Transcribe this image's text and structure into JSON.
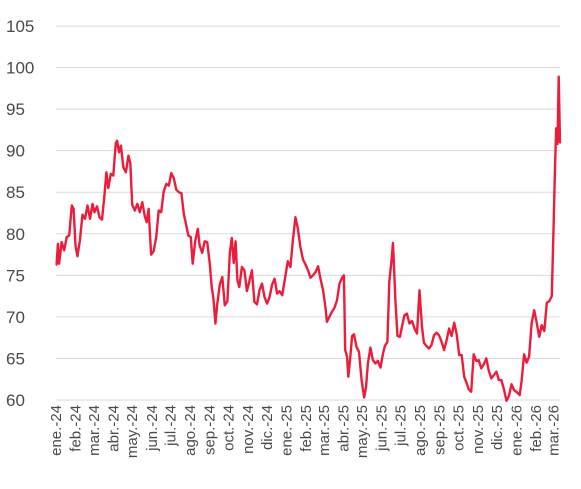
{
  "chart_data": {
    "type": "line",
    "title": "",
    "xlabel": "",
    "ylabel": "",
    "ylim": [
      60,
      105
    ],
    "yticks": [
      60,
      65,
      70,
      75,
      80,
      85,
      90,
      95,
      100,
      105
    ],
    "grid": true,
    "legend": "none",
    "color": "#ec1c3b",
    "xtick_labels": [
      "ene.-24",
      "feb.-24",
      "mar.-24",
      "abr.-24",
      "may.-24",
      "jun.-24",
      "jul.-24",
      "ago.-24",
      "sep.-24",
      "oct.-24",
      "nov.-24",
      "dic.-24",
      "ene.-25",
      "feb.-25",
      "mar.-25",
      "abr.-25",
      "may.-25",
      "jun.-25",
      "jul.-25",
      "ago.-25",
      "sep.-25",
      "oct.-25",
      "nov.-25",
      "dic.-25",
      "ene.-26",
      "feb.-26",
      "mar.-26"
    ],
    "series": [
      {
        "points": [
          [
            "2024-01-02",
            76.3
          ],
          [
            "2024-01-04",
            78.8
          ],
          [
            "2024-01-06",
            76.4
          ],
          [
            "2024-01-10",
            79.0
          ],
          [
            "2024-01-14",
            78.0
          ],
          [
            "2024-01-18",
            79.6
          ],
          [
            "2024-01-22",
            79.8
          ],
          [
            "2024-01-26",
            83.4
          ],
          [
            "2024-01-29",
            83.0
          ],
          [
            "2024-02-01",
            78.6
          ],
          [
            "2024-02-04",
            77.3
          ],
          [
            "2024-02-08",
            79.2
          ],
          [
            "2024-02-12",
            82.3
          ],
          [
            "2024-02-16",
            81.8
          ],
          [
            "2024-02-20",
            83.4
          ],
          [
            "2024-02-24",
            81.8
          ],
          [
            "2024-02-28",
            83.6
          ],
          [
            "2024-03-02",
            82.6
          ],
          [
            "2024-03-06",
            83.3
          ],
          [
            "2024-03-10",
            82.0
          ],
          [
            "2024-03-14",
            81.7
          ],
          [
            "2024-03-18",
            84.7
          ],
          [
            "2024-03-21",
            87.4
          ],
          [
            "2024-03-24",
            85.5
          ],
          [
            "2024-03-28",
            87.2
          ],
          [
            "2024-04-01",
            87.0
          ],
          [
            "2024-04-05",
            90.9
          ],
          [
            "2024-04-07",
            91.2
          ],
          [
            "2024-04-10",
            89.8
          ],
          [
            "2024-04-13",
            90.6
          ],
          [
            "2024-04-17",
            88.0
          ],
          [
            "2024-04-21",
            87.4
          ],
          [
            "2024-04-25",
            89.4
          ],
          [
            "2024-04-28",
            88.5
          ],
          [
            "2024-05-01",
            83.5
          ],
          [
            "2024-05-05",
            82.8
          ],
          [
            "2024-05-09",
            83.6
          ],
          [
            "2024-05-13",
            82.6
          ],
          [
            "2024-05-17",
            83.8
          ],
          [
            "2024-05-21",
            82.1
          ],
          [
            "2024-05-24",
            81.4
          ],
          [
            "2024-05-27",
            83.0
          ],
          [
            "2024-05-31",
            77.5
          ],
          [
            "2024-06-04",
            77.9
          ],
          [
            "2024-06-08",
            79.6
          ],
          [
            "2024-06-12",
            82.8
          ],
          [
            "2024-06-16",
            82.6
          ],
          [
            "2024-06-20",
            85.1
          ],
          [
            "2024-06-24",
            86.0
          ],
          [
            "2024-06-28",
            85.8
          ],
          [
            "2024-07-02",
            87.3
          ],
          [
            "2024-07-06",
            86.7
          ],
          [
            "2024-07-10",
            85.3
          ],
          [
            "2024-07-14",
            85.0
          ],
          [
            "2024-07-18",
            84.9
          ],
          [
            "2024-07-22",
            82.3
          ],
          [
            "2024-07-25",
            81.3
          ],
          [
            "2024-07-29",
            79.8
          ],
          [
            "2024-08-02",
            79.6
          ],
          [
            "2024-08-05",
            76.4
          ],
          [
            "2024-08-09",
            79.1
          ],
          [
            "2024-08-13",
            80.6
          ],
          [
            "2024-08-16",
            78.6
          ],
          [
            "2024-08-20",
            77.7
          ],
          [
            "2024-08-24",
            79.1
          ],
          [
            "2024-08-28",
            79.0
          ],
          [
            "2024-09-01",
            76.5
          ],
          [
            "2024-09-04",
            73.7
          ],
          [
            "2024-09-07",
            72.1
          ],
          [
            "2024-09-10",
            69.2
          ],
          [
            "2024-09-13",
            71.6
          ],
          [
            "2024-09-17",
            73.9
          ],
          [
            "2024-09-21",
            74.8
          ],
          [
            "2024-09-25",
            71.4
          ],
          [
            "2024-09-29",
            71.9
          ],
          [
            "2024-10-03",
            77.8
          ],
          [
            "2024-10-06",
            79.5
          ],
          [
            "2024-10-09",
            76.5
          ],
          [
            "2024-10-12",
            79.1
          ],
          [
            "2024-10-15",
            74.4
          ],
          [
            "2024-10-18",
            73.6
          ],
          [
            "2024-10-22",
            76.0
          ],
          [
            "2024-10-26",
            75.6
          ],
          [
            "2024-10-30",
            73.1
          ],
          [
            "2024-11-03",
            74.3
          ],
          [
            "2024-11-07",
            75.6
          ],
          [
            "2024-11-11",
            71.8
          ],
          [
            "2024-11-15",
            71.5
          ],
          [
            "2024-11-19",
            73.2
          ],
          [
            "2024-11-23",
            74.0
          ],
          [
            "2024-11-27",
            72.4
          ],
          [
            "2024-12-01",
            71.6
          ],
          [
            "2024-12-05",
            72.4
          ],
          [
            "2024-12-09",
            73.9
          ],
          [
            "2024-12-13",
            74.6
          ],
          [
            "2024-12-17",
            72.8
          ],
          [
            "2024-12-21",
            73.1
          ],
          [
            "2024-12-25",
            72.6
          ],
          [
            "2024-12-29",
            74.4
          ],
          [
            "2025-01-03",
            76.7
          ],
          [
            "2025-01-07",
            76.0
          ],
          [
            "2025-01-11",
            79.2
          ],
          [
            "2025-01-15",
            82.0
          ],
          [
            "2025-01-19",
            80.6
          ],
          [
            "2025-01-23",
            78.4
          ],
          [
            "2025-01-27",
            76.9
          ],
          [
            "2025-01-31",
            76.3
          ],
          [
            "2025-02-04",
            75.6
          ],
          [
            "2025-02-08",
            74.7
          ],
          [
            "2025-02-12",
            75.0
          ],
          [
            "2025-02-16",
            75.4
          ],
          [
            "2025-02-20",
            76.1
          ],
          [
            "2025-02-24",
            74.5
          ],
          [
            "2025-02-28",
            73.2
          ],
          [
            "2025-03-04",
            71.0
          ],
          [
            "2025-03-06",
            69.4
          ],
          [
            "2025-03-10",
            70.0
          ],
          [
            "2025-03-14",
            70.6
          ],
          [
            "2025-03-18",
            71.1
          ],
          [
            "2025-03-22",
            72.0
          ],
          [
            "2025-03-26",
            74.0
          ],
          [
            "2025-03-30",
            74.7
          ],
          [
            "2025-04-02",
            75.0
          ],
          [
            "2025-04-04",
            66.0
          ],
          [
            "2025-04-07",
            65.2
          ],
          [
            "2025-04-09",
            62.8
          ],
          [
            "2025-04-12",
            65.0
          ],
          [
            "2025-04-15",
            67.7
          ],
          [
            "2025-04-18",
            67.9
          ],
          [
            "2025-04-22",
            66.4
          ],
          [
            "2025-04-26",
            65.8
          ],
          [
            "2025-04-30",
            62.5
          ],
          [
            "2025-05-04",
            60.3
          ],
          [
            "2025-05-07",
            61.5
          ],
          [
            "2025-05-10",
            64.4
          ],
          [
            "2025-05-14",
            66.3
          ],
          [
            "2025-05-18",
            64.8
          ],
          [
            "2025-05-22",
            64.4
          ],
          [
            "2025-05-26",
            64.7
          ],
          [
            "2025-05-30",
            63.9
          ],
          [
            "2025-06-03",
            65.6
          ],
          [
            "2025-06-06",
            66.5
          ],
          [
            "2025-06-10",
            67.0
          ],
          [
            "2025-06-13",
            74.2
          ],
          [
            "2025-06-16",
            76.4
          ],
          [
            "2025-06-19",
            78.9
          ],
          [
            "2025-06-23",
            71.5
          ],
          [
            "2025-06-26",
            67.7
          ],
          [
            "2025-06-30",
            67.6
          ],
          [
            "2025-07-03",
            68.8
          ],
          [
            "2025-07-07",
            70.2
          ],
          [
            "2025-07-11",
            70.4
          ],
          [
            "2025-07-15",
            69.2
          ],
          [
            "2025-07-19",
            69.5
          ],
          [
            "2025-07-23",
            68.6
          ],
          [
            "2025-07-27",
            68.0
          ],
          [
            "2025-07-31",
            73.2
          ],
          [
            "2025-08-04",
            68.8
          ],
          [
            "2025-08-07",
            66.9
          ],
          [
            "2025-08-11",
            66.5
          ],
          [
            "2025-08-15",
            66.2
          ],
          [
            "2025-08-19",
            66.6
          ],
          [
            "2025-08-23",
            67.8
          ],
          [
            "2025-08-27",
            68.1
          ],
          [
            "2025-08-31",
            67.8
          ],
          [
            "2025-09-04",
            67.0
          ],
          [
            "2025-09-08",
            66.0
          ],
          [
            "2025-09-12",
            67.2
          ],
          [
            "2025-09-16",
            68.6
          ],
          [
            "2025-09-20",
            67.7
          ],
          [
            "2025-09-24",
            69.3
          ],
          [
            "2025-09-28",
            67.9
          ],
          [
            "2025-10-02",
            65.4
          ],
          [
            "2025-10-06",
            65.4
          ],
          [
            "2025-10-10",
            62.8
          ],
          [
            "2025-10-14",
            62.0
          ],
          [
            "2025-10-17",
            61.3
          ],
          [
            "2025-10-21",
            61.0
          ],
          [
            "2025-10-25",
            65.5
          ],
          [
            "2025-10-29",
            64.7
          ],
          [
            "2025-11-02",
            64.8
          ],
          [
            "2025-11-06",
            63.8
          ],
          [
            "2025-11-10",
            64.3
          ],
          [
            "2025-11-14",
            65.0
          ],
          [
            "2025-11-18",
            63.5
          ],
          [
            "2025-11-22",
            62.6
          ],
          [
            "2025-11-26",
            63.0
          ],
          [
            "2025-11-30",
            63.4
          ],
          [
            "2025-12-04",
            62.4
          ],
          [
            "2025-12-08",
            62.4
          ],
          [
            "2025-12-12",
            61.3
          ],
          [
            "2025-12-16",
            59.9
          ],
          [
            "2025-12-20",
            60.5
          ],
          [
            "2025-12-24",
            61.9
          ],
          [
            "2025-12-28",
            61.2
          ],
          [
            "2026-01-02",
            60.9
          ],
          [
            "2026-01-06",
            60.6
          ],
          [
            "2026-01-09",
            62.3
          ],
          [
            "2026-01-13",
            65.5
          ],
          [
            "2026-01-17",
            64.5
          ],
          [
            "2026-01-21",
            65.2
          ],
          [
            "2026-01-25",
            69.2
          ],
          [
            "2026-01-29",
            70.8
          ],
          [
            "2026-02-02",
            69.3
          ],
          [
            "2026-02-06",
            67.6
          ],
          [
            "2026-02-10",
            69.0
          ],
          [
            "2026-02-14",
            68.3
          ],
          [
            "2026-02-18",
            71.7
          ],
          [
            "2026-02-22",
            71.9
          ],
          [
            "2026-02-26",
            72.5
          ],
          [
            "2026-03-01",
            81.4
          ],
          [
            "2026-03-03",
            87.9
          ],
          [
            "2026-03-05",
            92.7
          ],
          [
            "2026-03-07",
            90.8
          ],
          [
            "2026-03-09",
            98.9
          ],
          [
            "2026-03-11",
            91.0
          ]
        ]
      }
    ]
  }
}
